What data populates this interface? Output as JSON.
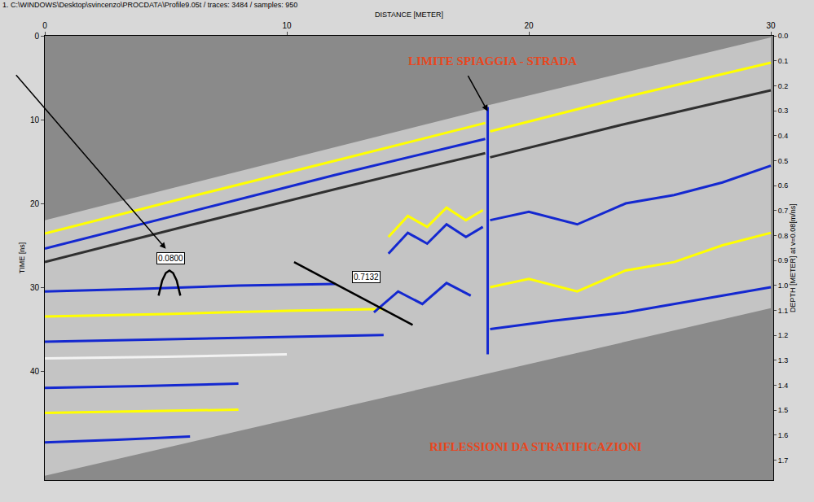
{
  "chart_data": {
    "type": "radargram",
    "header": "1. C:\\WINDOWS\\Desktop\\svincenzo\\PROCDATA\\Profile9.05t / traces: 3484 / samples: 950",
    "x_label": "DISTANCE [METER]",
    "y_label": "TIME [ns]",
    "y2_label": "DEPTH [METER] at v=0.08[m/ns]",
    "xlim": [
      0,
      30.1
    ],
    "xticks": [
      0,
      10,
      20,
      30
    ],
    "ylim": [
      53,
      0
    ],
    "yticks": [
      0,
      10,
      20,
      30,
      40
    ],
    "y2lim": [
      1.78,
      0
    ],
    "y2ticks": [
      {
        "value": 0,
        "label": "0.0"
      },
      0.1,
      0.2,
      0.3,
      0.4,
      0.5,
      0.6,
      0.7,
      0.8,
      0.9,
      {
        "value": 1,
        "label": "1.0"
      },
      1.1,
      1.2,
      1.3,
      1.4,
      1.5,
      1.6,
      1.7
    ],
    "grid": false,
    "annotations": [
      "LIMITE SPIAGGIA - STRADA",
      "RIFLESSIONI DA STRATIFICAZIONI",
      "0.0800",
      "0.7132"
    ],
    "series": [
      {
        "type": "area",
        "color": "#c4c4c4",
        "x": [
          0,
          18.3,
          18.3,
          30,
          30,
          0
        ],
        "values": [
          22,
          8.7,
          8.3,
          0.2,
          32.5,
          52.5
        ]
      },
      {
        "type": "line",
        "color": "#ffff00",
        "x": [
          0,
          6,
          12,
          18.2
        ],
        "values": [
          23.6,
          19.2,
          14.9,
          10.4
        ]
      },
      {
        "type": "line",
        "color": "#1428d0",
        "x": [
          0,
          6,
          12,
          18.2
        ],
        "values": [
          25.4,
          21.0,
          16.6,
          12.3
        ]
      },
      {
        "type": "line",
        "color": "#303030",
        "x": [
          0,
          6,
          12,
          18.2
        ],
        "values": [
          27,
          22.6,
          18.3,
          14
        ]
      },
      {
        "type": "line",
        "color": "#1428d0",
        "x": [
          0,
          4,
          8,
          12
        ],
        "values": [
          30.5,
          30.2,
          29.8,
          29.6
        ]
      },
      {
        "type": "line",
        "color": "#ffff00",
        "x": [
          0,
          5,
          10,
          14
        ],
        "values": [
          33.5,
          33.2,
          32.8,
          32.6
        ]
      },
      {
        "type": "line",
        "color": "#1428d0",
        "x": [
          0,
          5,
          10,
          14
        ],
        "values": [
          36.5,
          36.2,
          35.9,
          35.7
        ]
      },
      {
        "type": "line",
        "color": "#f2f2f2",
        "x": [
          0,
          5,
          10
        ],
        "values": [
          38.5,
          38.3,
          38
        ]
      },
      {
        "type": "line",
        "color": "#1428d0",
        "x": [
          0,
          4,
          8
        ],
        "values": [
          42,
          41.8,
          41.5
        ]
      },
      {
        "type": "line",
        "color": "#ffff00",
        "x": [
          0,
          4,
          8
        ],
        "values": [
          45,
          44.8,
          44.6
        ]
      },
      {
        "type": "line",
        "color": "#1428d0",
        "x": [
          0,
          3,
          6
        ],
        "values": [
          48.5,
          48.2,
          47.8
        ]
      },
      {
        "type": "line",
        "color": "#ffff00",
        "x": [
          14.2,
          15,
          15.8,
          16.6,
          17.4,
          18.1
        ],
        "values": [
          24,
          21.5,
          22.8,
          20.5,
          22,
          20.8
        ]
      },
      {
        "type": "line",
        "color": "#1428d0",
        "x": [
          14.2,
          15,
          15.8,
          16.6,
          17.4,
          18.1
        ],
        "values": [
          26,
          23.5,
          24.8,
          22.5,
          24,
          22.8
        ]
      },
      {
        "type": "line",
        "color": "#1428d0",
        "x": [
          13.6,
          14.6,
          15.6,
          16.6,
          17.6
        ],
        "values": [
          33,
          30.5,
          32,
          29.5,
          31
        ]
      },
      {
        "type": "line",
        "color": "#ffff00",
        "x": [
          18.4,
          24,
          30
        ],
        "values": [
          11.4,
          7.3,
          3.2
        ]
      },
      {
        "type": "line",
        "color": "#1428d0",
        "x": [
          18.4,
          20,
          22,
          24,
          26,
          28,
          30
        ],
        "values": [
          22,
          21,
          22.5,
          20,
          19,
          17.5,
          15.5
        ]
      },
      {
        "type": "line",
        "color": "#ffff00",
        "x": [
          18.4,
          20,
          22,
          24,
          26,
          28,
          30
        ],
        "values": [
          30,
          29,
          30.5,
          28,
          27,
          25,
          23.5
        ]
      },
      {
        "type": "line",
        "color": "#1428d0",
        "x": [
          18.4,
          21,
          24,
          27,
          30
        ],
        "values": [
          35,
          34,
          33,
          31.5,
          30
        ]
      },
      {
        "type": "line",
        "color": "#303030",
        "x": [
          18.4,
          24,
          30
        ],
        "values": [
          14.5,
          10.5,
          6.5
        ]
      },
      {
        "type": "line",
        "color": "#1428d0",
        "x": [
          18.3,
          18.3
        ],
        "values": [
          8.5,
          38
        ]
      },
      {
        "type": "line",
        "color": "#000000",
        "x": [
          4.7,
          4.85,
          5.0,
          5.15,
          5.3,
          5.45,
          5.6
        ],
        "values": [
          31,
          29.2,
          28.3,
          28.0,
          28.3,
          29.2,
          31
        ]
      },
      {
        "type": "line",
        "color": "#000000",
        "x": [
          10.3,
          15.2
        ],
        "values": [
          27,
          34.5
        ]
      }
    ]
  }
}
